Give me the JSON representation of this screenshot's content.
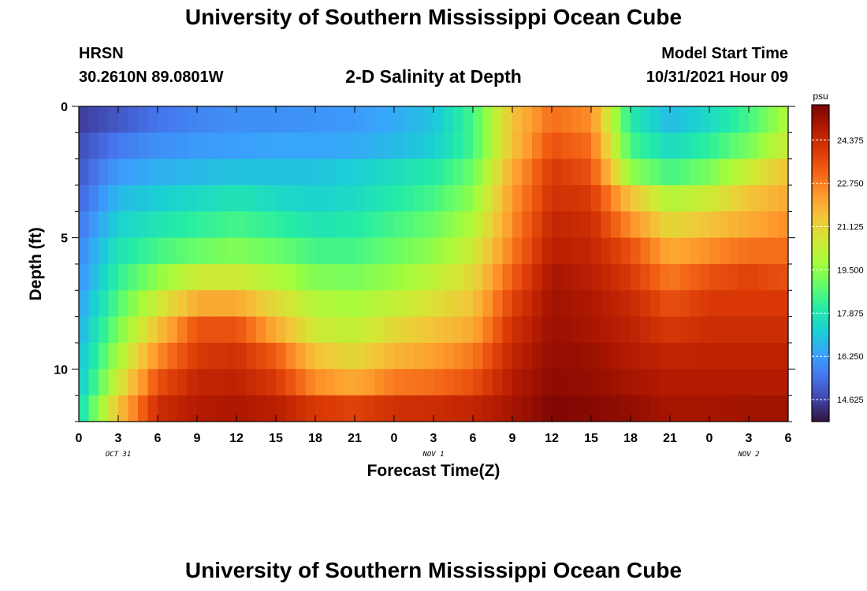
{
  "page": {
    "title": "University of Southern Mississippi Ocean Cube",
    "station": "HRSN",
    "coordinates": "30.2610N  89.0801W",
    "chart_heading": "2-D Salinity at Depth",
    "model_start_label": "Model Start Time",
    "model_start_value": "10/31/2021 Hour 09",
    "bottom_title": "University of Southern Mississippi Ocean Cube"
  },
  "colors": {
    "palette": [
      "#30123b",
      "#4145ab",
      "#4675ed",
      "#39a2fc",
      "#1bcfd4",
      "#24eca6",
      "#61fc6c",
      "#a4fc3b",
      "#d1e834",
      "#f3c63a",
      "#fe9b2d",
      "#f36315",
      "#d93806",
      "#b11901",
      "#7a0402"
    ]
  },
  "chart_data": {
    "type": "heatmap",
    "title": "2-D Salinity at Depth",
    "xlabel": "Forecast Time(Z)",
    "ylabel": "Depth (ft)",
    "x_tick_labels": [
      "0",
      "3",
      "6",
      "9",
      "12",
      "15",
      "18",
      "21",
      "0",
      "3",
      "6",
      "9",
      "12",
      "15",
      "18",
      "21",
      "0",
      "3",
      "6"
    ],
    "x_date_labels": [
      {
        "label": "OCT 31",
        "at_hour": 3
      },
      {
        "label": "NOV 1",
        "at_hour": 27
      },
      {
        "label": "NOV 2",
        "at_hour": 51
      }
    ],
    "x_range_hours": [
      0,
      54
    ],
    "y_range_ft": [
      0,
      12
    ],
    "y_major_ticks": [
      0,
      5,
      10
    ],
    "y_tick_labels": [
      "0",
      "5",
      "10"
    ],
    "colorbar": {
      "unit": "psu",
      "min": 13.8,
      "max": 25.7,
      "tick_values": [
        24.375,
        22.75,
        21.125,
        19.5,
        17.875,
        16.25,
        14.625
      ],
      "tick_labels": [
        "24.375",
        "22.750",
        "21.125",
        "19.500",
        "17.875",
        "16.250",
        "14.625"
      ]
    },
    "depth_levels_ft": [
      0.5,
      1.5,
      2.5,
      3.5,
      4.5,
      5.5,
      6.5,
      7.5,
      8.5,
      9.5,
      10.5,
      11.5
    ],
    "time_hours": [
      0,
      3,
      6,
      9,
      12,
      15,
      18,
      21,
      24,
      27,
      30,
      33,
      36,
      39,
      42,
      45,
      48,
      51,
      54
    ],
    "salinity_psu": [
      [
        14.5,
        15.0,
        15.5,
        15.8,
        16.0,
        16.0,
        16.1,
        16.2,
        16.5,
        17.0,
        18.5,
        21.5,
        23.0,
        22.5,
        18.0,
        16.8,
        17.5,
        18.5,
        20.0
      ],
      [
        14.8,
        15.6,
        16.0,
        16.2,
        16.3,
        16.4,
        16.4,
        16.5,
        16.8,
        17.2,
        18.5,
        21.5,
        23.5,
        23.0,
        18.5,
        17.5,
        18.2,
        19.2,
        20.5
      ],
      [
        15.0,
        16.2,
        16.6,
        16.8,
        17.0,
        17.0,
        17.0,
        17.2,
        17.6,
        18.0,
        19.0,
        22.0,
        24.0,
        23.5,
        19.5,
        18.5,
        19.2,
        20.5,
        21.5
      ],
      [
        15.2,
        16.8,
        17.2,
        17.5,
        17.8,
        17.5,
        17.3,
        17.5,
        18.0,
        18.5,
        19.5,
        22.3,
        24.2,
        24.0,
        21.5,
        20.0,
        20.5,
        21.5,
        22.0
      ],
      [
        15.5,
        17.3,
        17.8,
        18.2,
        18.5,
        18.2,
        17.8,
        18.0,
        18.5,
        19.0,
        20.0,
        22.5,
        24.5,
        24.3,
        22.5,
        21.0,
        21.5,
        22.0,
        22.5
      ],
      [
        15.8,
        17.8,
        18.5,
        19.0,
        19.3,
        19.0,
        18.5,
        18.5,
        19.0,
        19.5,
        20.5,
        22.8,
        24.7,
        24.5,
        23.5,
        22.0,
        22.5,
        23.0,
        23.0
      ],
      [
        16.0,
        18.2,
        19.5,
        20.5,
        20.5,
        20.0,
        19.3,
        19.2,
        19.6,
        20.2,
        21.0,
        23.3,
        25.0,
        24.7,
        24.0,
        22.8,
        23.5,
        23.8,
        23.5
      ],
      [
        16.3,
        18.7,
        20.5,
        22.0,
        22.0,
        21.0,
        20.0,
        19.8,
        20.3,
        20.8,
        21.5,
        23.8,
        25.1,
        24.9,
        24.4,
        23.5,
        24.0,
        24.0,
        24.0
      ],
      [
        16.6,
        19.2,
        21.5,
        23.5,
        23.5,
        22.0,
        20.5,
        20.3,
        21.0,
        21.5,
        22.0,
        24.2,
        25.2,
        25.0,
        24.6,
        24.0,
        24.3,
        24.3,
        24.3
      ],
      [
        16.8,
        19.8,
        22.5,
        24.0,
        24.2,
        23.3,
        21.5,
        21.0,
        21.8,
        22.2,
        22.8,
        24.5,
        25.3,
        25.2,
        24.8,
        24.5,
        24.6,
        24.6,
        24.6
      ],
      [
        17.0,
        20.5,
        23.5,
        24.5,
        24.6,
        24.0,
        22.5,
        22.0,
        22.8,
        23.0,
        23.5,
        24.8,
        25.4,
        25.3,
        25.0,
        24.8,
        24.8,
        24.8,
        24.8
      ],
      [
        17.5,
        21.5,
        24.3,
        24.8,
        24.9,
        24.7,
        24.0,
        23.8,
        24.2,
        24.3,
        24.5,
        25.0,
        25.6,
        25.5,
        25.3,
        25.0,
        25.0,
        25.1,
        25.1
      ]
    ]
  }
}
